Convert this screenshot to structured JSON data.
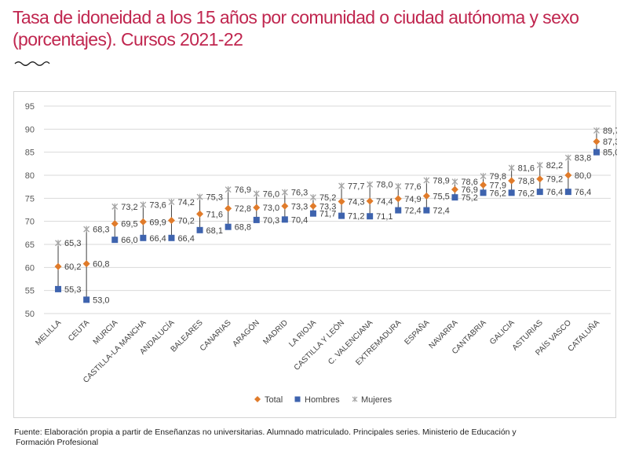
{
  "title": "Tasa de idoneidad a los 15 años por comunidad o ciudad autónoma y sexo (porcentajes). Cursos 2021-22",
  "source_line1": "Fuente: Elaboración propia a partir de Enseñanzas no universitarias. Alumnado matriculado. Principales series. Ministerio de Educación y",
  "source_line2": "Formación Profesional",
  "colors": {
    "title": "#c0264f",
    "total": "#e07b2a",
    "hombres": "#3e63ae",
    "mujeres": "#a5a5a5"
  },
  "chart_data": {
    "type": "scatter",
    "title": "",
    "xlabel": "",
    "ylabel": "",
    "ylim": [
      50,
      95
    ],
    "yticks": [
      "50",
      "55",
      "60",
      "65",
      "70",
      "75",
      "80",
      "85",
      "90",
      "95"
    ],
    "grid": true,
    "legend_position": "bottom",
    "categories": [
      "MELILLA",
      "CEUTA",
      "MURCIA",
      "CASTILLA-LA MANCHA",
      "ANDALUCÍA",
      "BALEARES",
      "CANARIAS",
      "ARAGÓN",
      "MADRID",
      "LA RIOJA",
      "CASTILLA Y LEÓN",
      "C. VALENCIANA",
      "EXTREMADURA",
      "ESPAÑA",
      "NAVARRA",
      "CANTABRIA",
      "GALICIA",
      "ASTURIAS",
      "PAÍS VASCO",
      "CATALUÑA"
    ],
    "series": [
      {
        "name": "Total",
        "marker": "diamond",
        "values": [
          60.2,
          60.8,
          69.5,
          69.9,
          70.2,
          71.6,
          72.8,
          73.0,
          73.3,
          73.3,
          74.3,
          74.4,
          74.9,
          75.5,
          76.9,
          77.9,
          78.8,
          79.2,
          80.0,
          87.3
        ],
        "labels": [
          "60,2",
          "60,8",
          "69,5",
          "69,9",
          "70,2",
          "71,6",
          "72,8",
          "73,0",
          "73,3",
          "73,3",
          "74,3",
          "74,4",
          "74,9",
          "75,5",
          "76,9",
          "77,9",
          "78,8",
          "79,2",
          "80,0",
          "87,3"
        ]
      },
      {
        "name": "Hombres",
        "marker": "square",
        "values": [
          55.3,
          53.0,
          66.0,
          66.4,
          66.4,
          68.1,
          68.8,
          70.3,
          70.4,
          71.7,
          71.2,
          71.1,
          72.4,
          72.4,
          75.2,
          76.2,
          76.2,
          76.4,
          76.4,
          85.0
        ],
        "labels": [
          "55,3",
          "53,0",
          "66,0",
          "66,4",
          "66,4",
          "68,1",
          "68,8",
          "70,3",
          "70,4",
          "71,7",
          "71,2",
          "71,1",
          "72,4",
          "72,4",
          "75,2",
          "76,2",
          "76,2",
          "76,4",
          "76,4",
          "85,0"
        ]
      },
      {
        "name": "Mujeres",
        "marker": "asterisk",
        "values": [
          65.3,
          68.3,
          73.2,
          73.6,
          74.2,
          75.3,
          76.9,
          76.0,
          76.3,
          75.2,
          77.7,
          78.0,
          77.6,
          78.9,
          78.6,
          79.8,
          81.6,
          82.2,
          83.8,
          89.7
        ],
        "labels": [
          "65,3",
          "68,3",
          "73,2",
          "73,6",
          "74,2",
          "75,3",
          "76,9",
          "76,0",
          "76,3",
          "75,2",
          "77,7",
          "78,0",
          "77,6",
          "78,9",
          "78,6",
          "79,8",
          "81,6",
          "82,2",
          "83,8",
          "89,7"
        ]
      }
    ]
  }
}
